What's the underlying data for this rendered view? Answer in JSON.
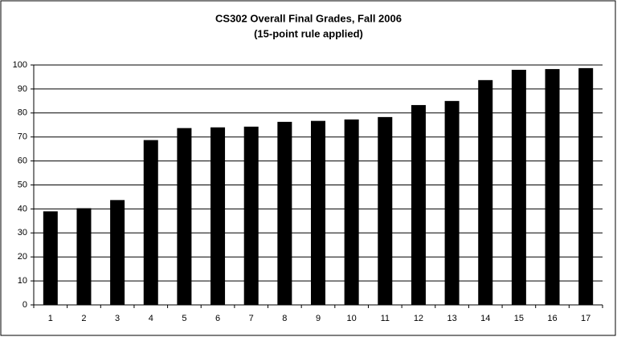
{
  "chart_data": {
    "type": "bar",
    "title": "CS302 Overall Final Grades, Fall 2006",
    "subtitle": "(15-point rule applied)",
    "categories": [
      "1",
      "2",
      "3",
      "4",
      "5",
      "6",
      "7",
      "8",
      "9",
      "10",
      "11",
      "12",
      "13",
      "14",
      "15",
      "16",
      "17"
    ],
    "values": [
      39,
      40.3,
      43.7,
      68.7,
      73.7,
      74,
      74.3,
      76.3,
      76.7,
      77.3,
      78.3,
      83.3,
      85,
      93.7,
      98,
      98.3,
      98.7
    ],
    "color": "#000000",
    "ylim": [
      0,
      100
    ],
    "yticks": [
      0,
      10,
      20,
      30,
      40,
      50,
      60,
      70,
      80,
      90,
      100
    ],
    "grid": true
  }
}
